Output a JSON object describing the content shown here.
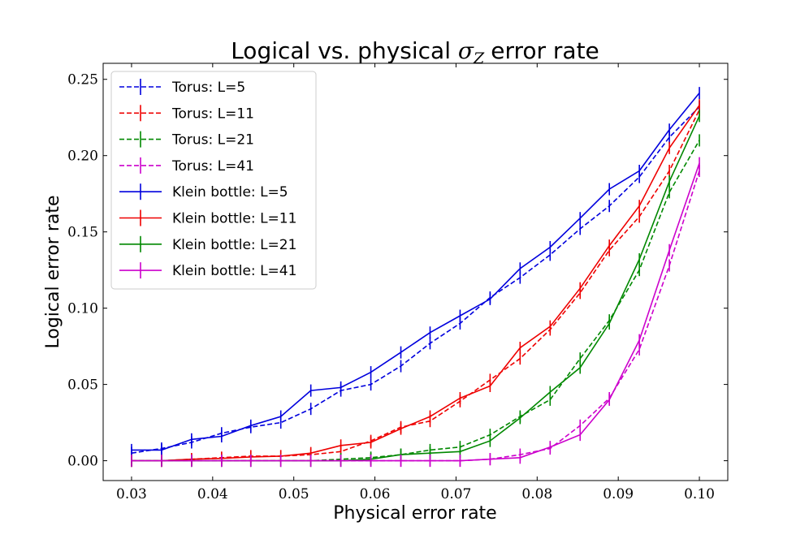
{
  "chart_data": {
    "type": "line",
    "title": "Logical vs. physical",
    "title_symbol": "σ",
    "title_subscript": "Z",
    "title_suffix": "error rate",
    "xlabel": "Physical error rate",
    "ylabel": "Logical error rate",
    "xlim": [
      0.0265,
      0.1035
    ],
    "ylim": [
      -0.013,
      0.2605
    ],
    "xticks": [
      "0.03",
      "0.04",
      "0.05",
      "0.06",
      "0.07",
      "0.08",
      "0.09",
      "0.10"
    ],
    "yticks": [
      "0.00",
      "0.05",
      "0.10",
      "0.15",
      "0.20",
      "0.25"
    ],
    "legend_position": "upper-left",
    "x": [
      0.03,
      0.0337,
      0.0374,
      0.0411,
      0.0447,
      0.0484,
      0.0521,
      0.0558,
      0.0595,
      0.0632,
      0.0668,
      0.0705,
      0.0742,
      0.0779,
      0.0816,
      0.0853,
      0.0889,
      0.0926,
      0.0963,
      0.1
    ],
    "series": [
      {
        "name": "Torus: L=5",
        "color": "#0000dd",
        "dash": true,
        "values": [
          0.005,
          0.008,
          0.012,
          0.018,
          0.022,
          0.025,
          0.034,
          0.046,
          0.05,
          0.062,
          0.077,
          0.09,
          0.107,
          0.12,
          0.135,
          0.152,
          0.167,
          0.186,
          0.212,
          0.232
        ]
      },
      {
        "name": "Torus: L=11",
        "color": "#ee0000",
        "dash": true,
        "values": [
          0.0,
          0.0,
          0.001,
          0.002,
          0.003,
          0.003,
          0.004,
          0.006,
          0.013,
          0.022,
          0.026,
          0.039,
          0.053,
          0.067,
          0.086,
          0.11,
          0.138,
          0.16,
          0.19,
          0.23
        ]
      },
      {
        "name": "Torus: L=21",
        "color": "#008800",
        "dash": true,
        "values": [
          0.0,
          0.0,
          0.0,
          0.0,
          0.0,
          0.0,
          0.0,
          0.001,
          0.002,
          0.004,
          0.007,
          0.009,
          0.017,
          0.029,
          0.04,
          0.067,
          0.092,
          0.125,
          0.176,
          0.21
        ]
      },
      {
        "name": "Torus: L=41",
        "color": "#cc00cc",
        "dash": true,
        "values": [
          0.0,
          0.0,
          0.0,
          0.0,
          0.0,
          0.0,
          0.0,
          0.0,
          0.0,
          0.0,
          0.0,
          0.0,
          0.001,
          0.004,
          0.008,
          0.023,
          0.041,
          0.073,
          0.128,
          0.19
        ]
      },
      {
        "name": "Klein bottle: L=5",
        "color": "#0000dd",
        "dash": false,
        "values": [
          0.007,
          0.007,
          0.014,
          0.016,
          0.023,
          0.029,
          0.046,
          0.048,
          0.058,
          0.071,
          0.084,
          0.095,
          0.106,
          0.126,
          0.14,
          0.159,
          0.178,
          0.19,
          0.217,
          0.241
        ]
      },
      {
        "name": "Klein bottle: L=11",
        "color": "#ee0000",
        "dash": false,
        "values": [
          0.0,
          0.0,
          0.001,
          0.0015,
          0.0025,
          0.003,
          0.005,
          0.01,
          0.012,
          0.021,
          0.029,
          0.041,
          0.049,
          0.074,
          0.088,
          0.113,
          0.141,
          0.167,
          0.205,
          0.233
        ]
      },
      {
        "name": "Klein bottle: L=21",
        "color": "#008800",
        "dash": false,
        "values": [
          0.0,
          0.0,
          0.0,
          0.0,
          0.0,
          0.0,
          0.0,
          0.0,
          0.001,
          0.004,
          0.005,
          0.006,
          0.013,
          0.028,
          0.045,
          0.061,
          0.09,
          0.132,
          0.183,
          0.226
        ]
      },
      {
        "name": "Klein bottle: L=41",
        "color": "#cc00cc",
        "dash": false,
        "values": [
          0.0,
          0.0,
          0.0,
          0.0,
          0.0,
          0.0,
          0.0,
          0.0,
          0.0,
          0.0,
          0.0,
          0.0,
          0.001,
          0.002,
          0.009,
          0.017,
          0.04,
          0.079,
          0.138,
          0.195
        ]
      }
    ],
    "error_bar": 0.004
  }
}
